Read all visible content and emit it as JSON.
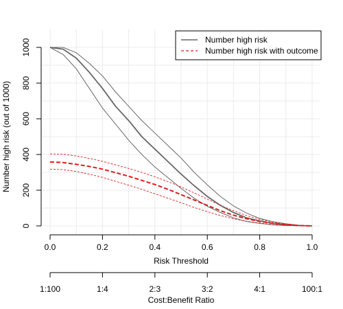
{
  "chart_data": {
    "type": "line",
    "title": "",
    "xlabel": "Risk Threshold",
    "ylabel": "Number high risk (out of 1000)",
    "xlim": [
      0,
      1
    ],
    "ylim": [
      0,
      1000
    ],
    "grid": true,
    "legend_position": "top-right",
    "x_ticks": [
      "0.0",
      "0.2",
      "0.4",
      "0.6",
      "0.8",
      "1.0"
    ],
    "y_ticks": [
      "0",
      "200",
      "400",
      "600",
      "800",
      "1000"
    ],
    "secondary_axis": {
      "label": "Cost:Benefit Ratio",
      "ticks": [
        "1:100",
        "1:4",
        "2:3",
        "3:2",
        "4:1",
        "100:1"
      ]
    },
    "x": [
      0.0,
      0.05,
      0.1,
      0.15,
      0.2,
      0.25,
      0.3,
      0.35,
      0.4,
      0.45,
      0.5,
      0.55,
      0.6,
      0.65,
      0.7,
      0.75,
      0.8,
      0.85,
      0.9,
      0.95,
      1.0
    ],
    "series": [
      {
        "name": "Number high risk",
        "style": "solid",
        "color": "#666666",
        "values": [
          1000,
          990,
          940,
          860,
          770,
          670,
          590,
          500,
          430,
          360,
          290,
          225,
          165,
          115,
          75,
          45,
          28,
          15,
          6,
          2,
          0
        ],
        "lower": [
          1000,
          960,
          880,
          770,
          660,
          570,
          480,
          400,
          330,
          270,
          210,
          155,
          110,
          75,
          45,
          25,
          14,
          6,
          2,
          1,
          0
        ],
        "upper": [
          1000,
          1000,
          970,
          910,
          840,
          750,
          670,
          590,
          520,
          450,
          380,
          300,
          230,
          165,
          112,
          72,
          42,
          24,
          12,
          4,
          0
        ]
      },
      {
        "name": "Number high risk with outcome",
        "style": "dashed",
        "color": "#e31a1c",
        "values": [
          358,
          355,
          345,
          333,
          318,
          298,
          278,
          255,
          232,
          205,
          175,
          145,
          115,
          85,
          60,
          40,
          25,
          15,
          7,
          2,
          0
        ],
        "lower": [
          318,
          315,
          305,
          290,
          272,
          250,
          228,
          205,
          180,
          155,
          130,
          103,
          80,
          58,
          40,
          26,
          16,
          8,
          3,
          1,
          0
        ],
        "upper": [
          403,
          402,
          392,
          378,
          362,
          342,
          322,
          300,
          275,
          248,
          218,
          185,
          150,
          115,
          85,
          58,
          37,
          22,
          11,
          4,
          0
        ]
      }
    ]
  }
}
